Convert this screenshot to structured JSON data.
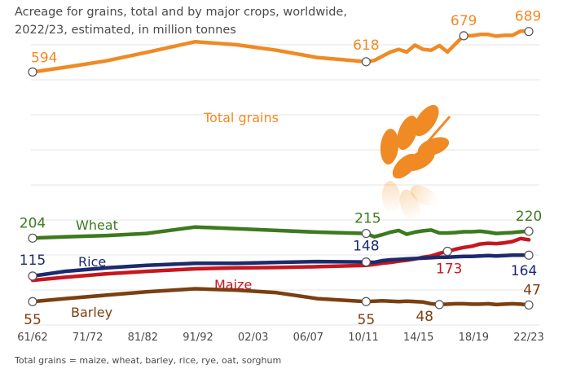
{
  "title_line1": "Acreage for grains, total and by major crops, worldwide,",
  "title_line2": "2022/23, estimated, in million tonnes",
  "footnote": "Total grains = maize, wheat, barley, rice, rye, oat, sorghum",
  "chart_data": {
    "type": "line",
    "title": "Acreage for grains, total and by major crops, worldwide, 2022/23, estimated, in million tonnes",
    "x_tick_labels": [
      "61/62",
      "71/72",
      "81/82",
      "91/92",
      "02/03",
      "06/07",
      "10/11",
      "14/15",
      "18/19",
      "22/23"
    ],
    "x": [
      1961,
      1965,
      1970,
      1975,
      1981,
      1986,
      1991,
      1996,
      2002,
      2003,
      2004,
      2005,
      2006,
      2007,
      2008,
      2009,
      2010,
      2011,
      2012,
      2013,
      2014,
      2015,
      2016,
      2017,
      2018,
      2019,
      2020,
      2021,
      2022
    ],
    "ylim": [
      0,
      740
    ],
    "grid": true,
    "series": [
      {
        "name": "Total grains",
        "color": "#f08a24",
        "values": [
          594,
          605,
          620,
          640,
          665,
          658,
          645,
          628,
          618,
          621,
          631,
          641,
          647,
          641,
          657,
          647,
          645,
          656,
          641,
          660,
          679,
          679,
          682,
          682,
          678,
          680,
          680,
          690,
          689
        ],
        "labeled_points": [
          {
            "x": 1961,
            "label": "594"
          },
          {
            "x": 2002,
            "label": "618"
          },
          {
            "x": 2014,
            "label": "679"
          },
          {
            "x": 2022,
            "label": "689"
          }
        ]
      },
      {
        "name": "Wheat",
        "color": "#3c7a1e",
        "values": [
          204,
          207,
          210,
          215,
          230,
          226,
          222,
          218,
          215,
          207,
          212,
          218,
          222,
          213,
          218,
          221,
          223,
          216,
          216,
          217,
          219,
          219,
          220,
          218,
          215,
          216,
          217,
          219,
          220
        ],
        "labeled_points": [
          {
            "x": 1961,
            "label": "204"
          },
          {
            "x": 2002,
            "label": "215"
          },
          {
            "x": 2022,
            "label": "220"
          }
        ]
      },
      {
        "name": "Rice",
        "color": "#1e2a6e",
        "values": [
          115,
          126,
          134,
          140,
          145,
          145,
          147,
          149,
          148,
          147,
          151,
          153,
          154,
          155,
          156,
          157,
          158,
          159,
          159,
          160,
          161,
          161,
          162,
          163,
          162,
          163,
          164,
          164,
          164
        ],
        "labeled_points": [
          {
            "x": 1961,
            "label": "115"
          },
          {
            "x": 2002,
            "label": "148"
          },
          {
            "x": 2022,
            "label": "164"
          }
        ]
      },
      {
        "name": "Maize",
        "color": "#c8161e",
        "values": [
          105,
          112,
          120,
          126,
          132,
          134,
          135,
          137,
          140,
          142,
          145,
          147,
          150,
          152,
          155,
          159,
          162,
          168,
          173,
          178,
          182,
          185,
          190,
          192,
          191,
          193,
          196,
          203,
          200
        ],
        "labeled_points": [
          {
            "x": 2012,
            "label": "173"
          }
        ]
      },
      {
        "name": "Barley",
        "color": "#7b3f10",
        "values": [
          55,
          62,
          70,
          78,
          85,
          82,
          76,
          62,
          55,
          56,
          57,
          56,
          55,
          56,
          55,
          54,
          50,
          48,
          49,
          50,
          50,
          49,
          49,
          50,
          48,
          49,
          50,
          49,
          47
        ],
        "labeled_points": [
          {
            "x": 1961,
            "label": "55"
          },
          {
            "x": 2002,
            "label": "55"
          },
          {
            "x": 2011,
            "label": "48"
          },
          {
            "x": 2022,
            "label": "47"
          }
        ]
      }
    ]
  }
}
